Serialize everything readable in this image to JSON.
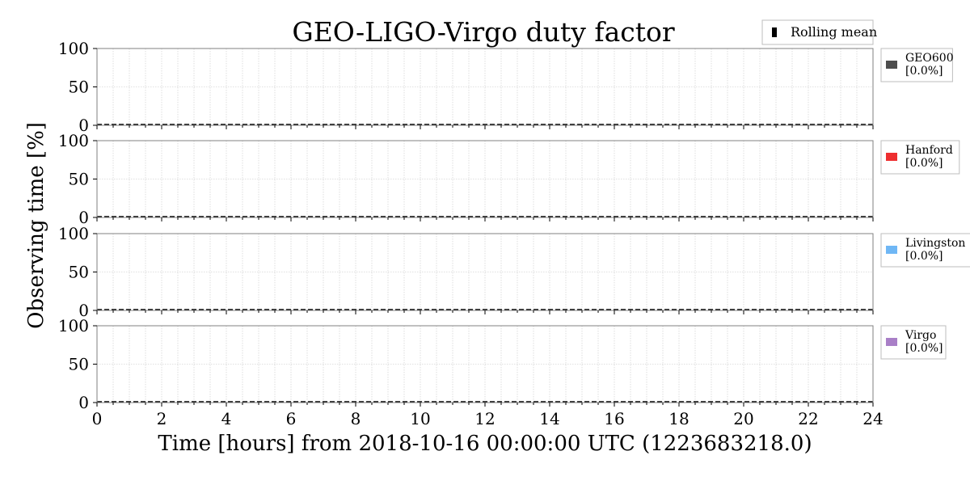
{
  "chart_data": {
    "type": "bar",
    "title": "GEO-LIGO-Virgo duty factor",
    "xlabel": "Time [hours] from 2018-10-16 00:00:00 UTC (1223683218.0)",
    "ylabel": "Observing time [%]",
    "xlim": [
      0,
      24
    ],
    "ylim": [
      0,
      100
    ],
    "x_ticks": [
      "0",
      "2",
      "4",
      "6",
      "8",
      "10",
      "12",
      "14",
      "16",
      "18",
      "20",
      "22",
      "24"
    ],
    "y_ticks": [
      "0",
      "50",
      "100"
    ],
    "grid": true,
    "legend_main": {
      "label": "Rolling mean",
      "placement": "top-right",
      "color": "#000000"
    },
    "rolling_mean": 0,
    "series": [
      {
        "name": "GEO600",
        "legend_value": "[0.0%]",
        "color": "#4d4d4d",
        "values": [
          0
        ]
      },
      {
        "name": "Hanford",
        "legend_value": "[0.0%]",
        "color": "#ee2e2f",
        "values": [
          0
        ]
      },
      {
        "name": "Livingston",
        "legend_value": "[0.0%]",
        "color": "#6fb7f5",
        "values": [
          0
        ]
      },
      {
        "name": "Virgo",
        "legend_value": "[0.0%]",
        "color": "#a97fc7",
        "values": [
          0
        ]
      }
    ]
  }
}
